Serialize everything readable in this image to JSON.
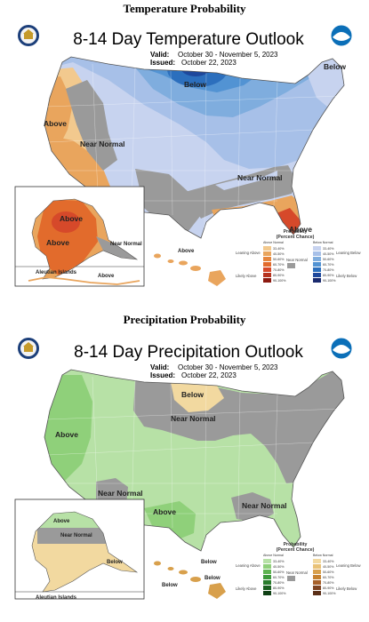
{
  "temperature": {
    "section_heading": "Temperature Probability",
    "title": "8-14 Day Temperature Outlook",
    "valid_label": "Valid:",
    "valid_dates": "October 30 - November 5, 2023",
    "issued_label": "Issued:",
    "issued_date": "October 22, 2023",
    "labels": {
      "below_north": "Below",
      "below_northeast": "Below",
      "above_west": "Above",
      "near_normal_west": "Near Normal",
      "near_normal_southeast": "Near Normal",
      "above_florida": "Above",
      "alaska_above_1": "Above",
      "alaska_above_2": "Above",
      "alaska_near_normal": "Near Normal",
      "aleutian": "Aleutian Islands",
      "aleutian_above": "Above",
      "hawaii_above": "Above"
    },
    "legend": {
      "title": "Probability",
      "subtitle": "(Percent Chance)",
      "left_header": "Above Normal",
      "right_header": "Below Normal",
      "near_label": "Near Normal",
      "left_categories": [
        "Leaning Above",
        "Likely Above"
      ],
      "right_categories": [
        "Leaning Below",
        "Likely Below"
      ],
      "ranges": [
        "33-40%",
        "40-50%",
        "50-60%",
        "60-70%",
        "70-80%",
        "80-90%",
        "90-100%"
      ],
      "above_colors": [
        "#f2c98e",
        "#e9a55d",
        "#e6863e",
        "#e26b2c",
        "#d6492a",
        "#b6321e",
        "#8c1a10"
      ],
      "below_colors": [
        "#c7d3ef",
        "#a7c0e8",
        "#7fadde",
        "#5293d3",
        "#2c6fbd",
        "#1e489c",
        "#1a2a6e"
      ]
    }
  },
  "precipitation": {
    "section_heading": "Precipitation Probability",
    "title": "8-14 Day Precipitation Outlook",
    "valid_label": "Valid:",
    "valid_dates": "October 30 - November 5, 2023",
    "issued_label": "Issued:",
    "issued_date": "October 22, 2023",
    "labels": {
      "below_north": "Below",
      "above_west": "Above",
      "near_normal_north": "Near Normal",
      "near_normal_sw": "Near Normal",
      "above_south": "Above",
      "near_normal_gulf": "Near Normal",
      "alaska_above": "Above",
      "alaska_near_normal": "Near Normal",
      "alaska_below": "Below",
      "aleutian": "Aleutian Islands",
      "hawaii_below_1": "Below",
      "hawaii_below_2": "Below",
      "hawaii_below_3": "Below"
    },
    "legend": {
      "title": "Probability",
      "subtitle": "(Percent Chance)",
      "left_header": "Above Normal",
      "right_header": "Below Normal",
      "near_label": "Near Normal",
      "left_categories": [
        "Leaning Above",
        "Likely Above"
      ],
      "right_categories": [
        "Leaning Below",
        "Likely Below"
      ],
      "ranges": [
        "33-40%",
        "40-50%",
        "50-60%",
        "60-70%",
        "70-80%",
        "80-90%",
        "90-100%"
      ],
      "above_colors": [
        "#b7e1a6",
        "#8fd07a",
        "#5eb350",
        "#3d9a3a",
        "#2a7d2d",
        "#1c6121",
        "#0f4014"
      ],
      "below_colors": [
        "#f2d9a0",
        "#e9c277",
        "#d8a04c",
        "#c6822f",
        "#a7612a",
        "#7e4422",
        "#5a2e16"
      ]
    }
  },
  "colors": {
    "temp_below_light": "#c7d3ef",
    "temp_below_mid": "#a7c0e8",
    "temp_below_strong": "#5293d3",
    "temp_below_deep": "#2c6fbd",
    "temp_below_darkest": "#1e489c",
    "temp_above_light": "#f2c98e",
    "temp_above_mid": "#e9a55d",
    "temp_above_strong": "#e26b2c",
    "temp_above_deep": "#d6492a",
    "near_normal": "#9a9a9a",
    "precip_above_light": "#b7e1a6",
    "precip_above_mid": "#8fd07a",
    "precip_below_light": "#f2d9a0",
    "precip_below_mid": "#d8a04c",
    "noaa_blue": "#0b6fb8"
  }
}
